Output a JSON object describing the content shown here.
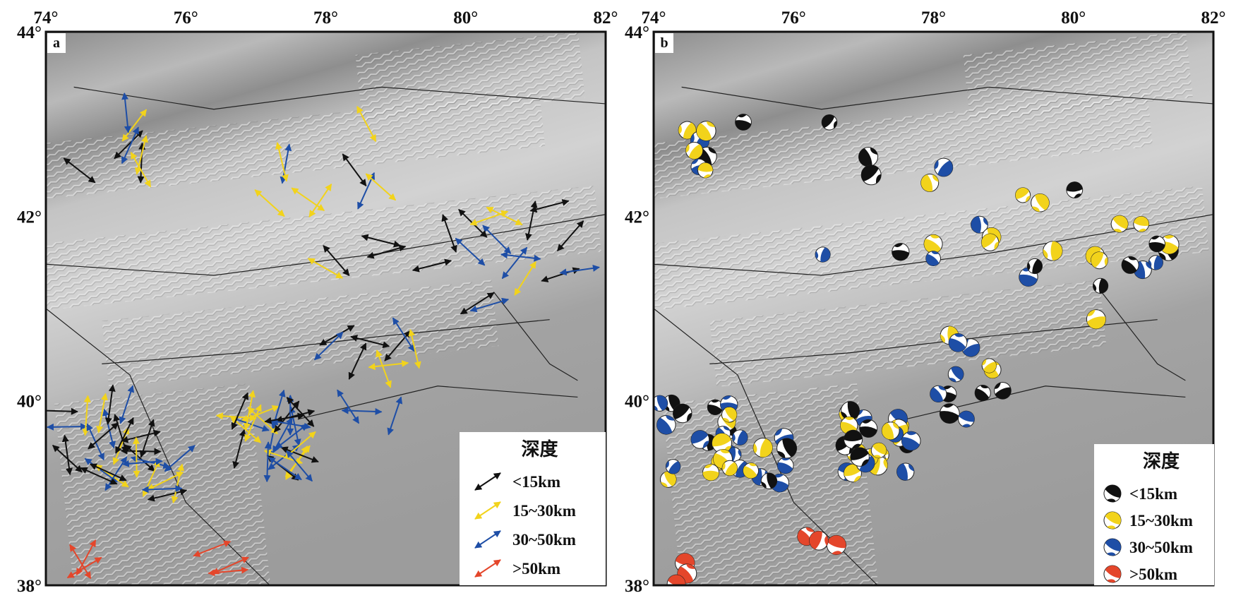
{
  "panels": [
    {
      "label": "a",
      "x_ticks": [
        "74°",
        "76°",
        "78°",
        "80°",
        "82°"
      ],
      "y_ticks": [
        "44°",
        "42°",
        "40°",
        "38°"
      ],
      "legend": {
        "title": "深度",
        "items": [
          "<15km",
          "15~30km",
          "30~50km",
          ">50km"
        ]
      }
    },
    {
      "label": "b",
      "x_ticks": [
        "74°",
        "76°",
        "78°",
        "80°",
        "82°"
      ],
      "y_ticks": [
        "44°",
        "42°",
        "40°",
        "38°"
      ],
      "legend": {
        "title": "深度",
        "items": [
          "<15km",
          "15~30km",
          "30~50km",
          ">50km"
        ]
      }
    }
  ]
}
